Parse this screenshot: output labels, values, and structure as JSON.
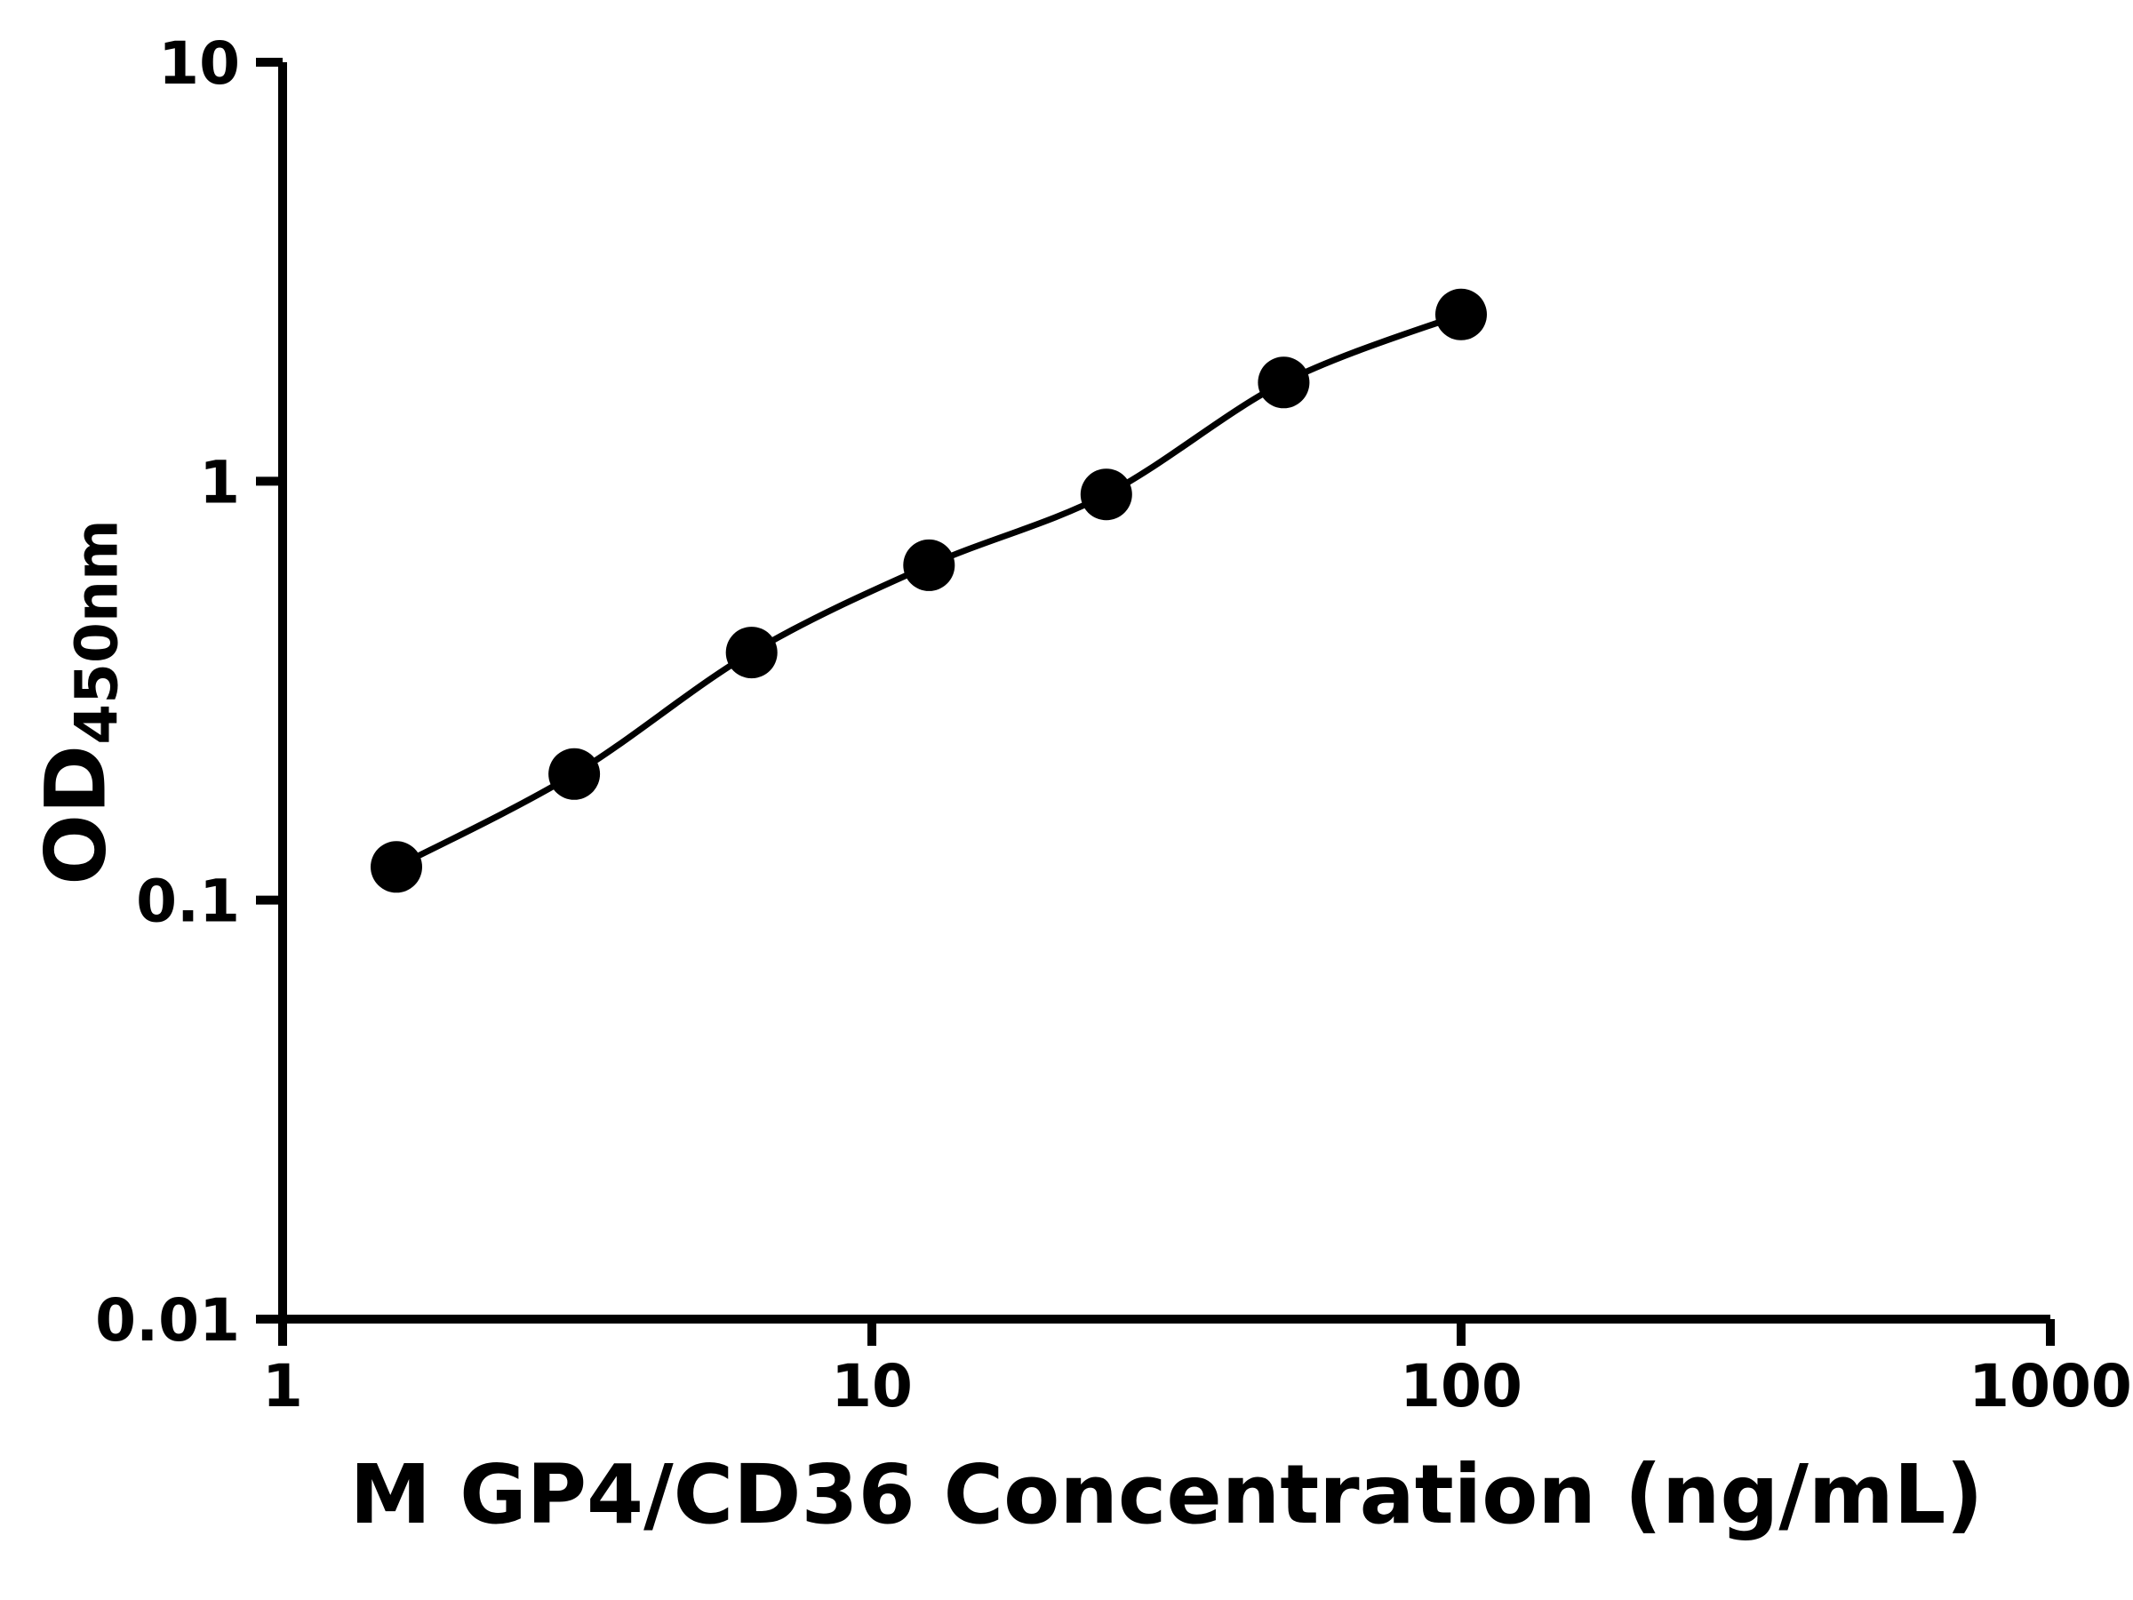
{
  "page": {
    "background_color": "#ffffff"
  },
  "style": {
    "axis_color": "#000000",
    "curve_color": "#000000",
    "point_color": "#000000",
    "axis_stroke_width": 10,
    "curve_stroke_width": 7,
    "point_radius": 29,
    "tick_length": 30
  },
  "chart_data": {
    "type": "scatter",
    "subtype": "elisa-standard-curve-with-fit-line",
    "title": "",
    "xlabel": "M GP4/CD36 Concentration (ng/mL)",
    "ylabel_main": "OD",
    "ylabel_sub": "450nm",
    "x_scale": "log",
    "y_scale": "log",
    "xlim": [
      1,
      1000
    ],
    "ylim": [
      0.01,
      10
    ],
    "x_ticks": [
      1,
      10,
      100,
      1000
    ],
    "x_tick_labels": [
      "1",
      "10",
      "100",
      "1000"
    ],
    "y_ticks": [
      0.01,
      0.1,
      1,
      10
    ],
    "y_tick_labels": [
      "0.01",
      "0.1",
      "1",
      "10"
    ],
    "grid": false,
    "legend": "none",
    "series": [
      {
        "name": "standard-curve",
        "marker": "circle",
        "color": "#000000",
        "points": [
          {
            "x": 1.56,
            "y": 0.12
          },
          {
            "x": 3.125,
            "y": 0.2
          },
          {
            "x": 6.25,
            "y": 0.39
          },
          {
            "x": 12.5,
            "y": 0.63
          },
          {
            "x": 25,
            "y": 0.93
          },
          {
            "x": 50,
            "y": 1.72
          },
          {
            "x": 100,
            "y": 2.5
          }
        ]
      }
    ]
  }
}
